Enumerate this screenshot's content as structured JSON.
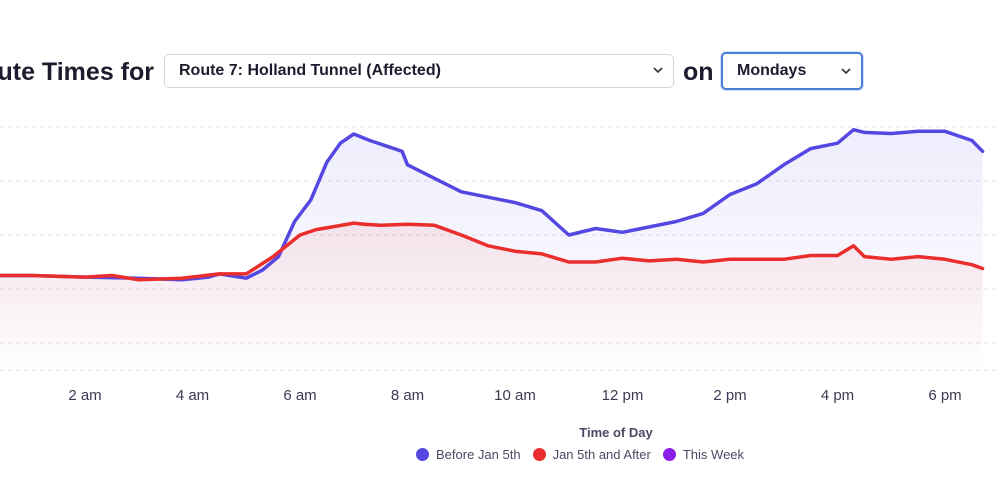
{
  "header": {
    "title_prefix": "ute Times for",
    "connector": "on",
    "route_select": {
      "value": "Route 7: Holland Tunnel (Affected)"
    },
    "day_select": {
      "value": "Mondays"
    }
  },
  "chart_data": {
    "type": "line",
    "xlabel": "Time of Day",
    "ylabel": "",
    "x_ticks": [
      {
        "hour": 2,
        "label": "2 am"
      },
      {
        "hour": 4,
        "label": "4 am"
      },
      {
        "hour": 6,
        "label": "6 am"
      },
      {
        "hour": 8,
        "label": "8 am"
      },
      {
        "hour": 10,
        "label": "10 am"
      },
      {
        "hour": 12,
        "label": "12 pm"
      },
      {
        "hour": 14,
        "label": "2 pm"
      },
      {
        "hour": 16,
        "label": "4 pm"
      },
      {
        "hour": 18,
        "label": "6 pm"
      }
    ],
    "xlim": [
      0.15,
      18.7
    ],
    "ylim": [
      0,
      5
    ],
    "grid": "horizontal dashed",
    "legend_position": "bottom-center",
    "series": [
      {
        "name": "Before Jan 5th",
        "color": "#5548e2",
        "x": [
          0.15,
          1.0,
          2.0,
          3.0,
          3.8,
          4.3,
          4.5,
          5.0,
          5.3,
          5.6,
          5.9,
          6.2,
          6.5,
          6.75,
          7.0,
          7.3,
          7.9,
          8.0,
          8.5,
          9.0,
          9.5,
          10.0,
          10.5,
          11.0,
          11.5,
          12.0,
          12.5,
          13.0,
          13.5,
          14.0,
          14.5,
          15.0,
          15.5,
          16.0,
          16.3,
          16.5,
          17.0,
          17.5,
          18.0,
          18.5,
          18.7
        ],
        "y": [
          1.75,
          1.75,
          1.72,
          1.7,
          1.67,
          1.72,
          1.78,
          1.7,
          1.85,
          2.1,
          2.75,
          3.15,
          3.85,
          4.2,
          4.37,
          4.25,
          4.05,
          3.8,
          3.55,
          3.3,
          3.2,
          3.1,
          2.95,
          2.5,
          2.62,
          2.55,
          2.65,
          2.75,
          2.9,
          3.25,
          3.45,
          3.8,
          4.1,
          4.2,
          4.45,
          4.4,
          4.38,
          4.42,
          4.42,
          4.25,
          4.05
        ]
      },
      {
        "name": "Jan 5th and After",
        "color": "#ea2d2d",
        "x": [
          0.15,
          1.0,
          2.0,
          2.5,
          3.0,
          3.8,
          4.5,
          5.0,
          5.5,
          6.0,
          6.3,
          6.6,
          7.0,
          7.2,
          7.5,
          8.0,
          8.5,
          9.0,
          9.5,
          10.0,
          10.5,
          11.0,
          11.5,
          12.0,
          12.5,
          13.0,
          13.5,
          14.0,
          14.5,
          15.0,
          15.5,
          16.0,
          16.3,
          16.5,
          17.0,
          17.5,
          18.0,
          18.5,
          18.7
        ],
        "y": [
          1.75,
          1.75,
          1.72,
          1.75,
          1.67,
          1.7,
          1.78,
          1.78,
          2.1,
          2.5,
          2.6,
          2.65,
          2.72,
          2.7,
          2.68,
          2.7,
          2.68,
          2.5,
          2.3,
          2.2,
          2.15,
          2.0,
          2.0,
          2.07,
          2.02,
          2.05,
          2.0,
          2.05,
          2.05,
          2.05,
          2.12,
          2.12,
          2.3,
          2.1,
          2.05,
          2.1,
          2.05,
          1.95,
          1.88
        ]
      },
      {
        "name": "This Week",
        "color": "#8b1ee6",
        "x": [],
        "y": []
      }
    ]
  }
}
